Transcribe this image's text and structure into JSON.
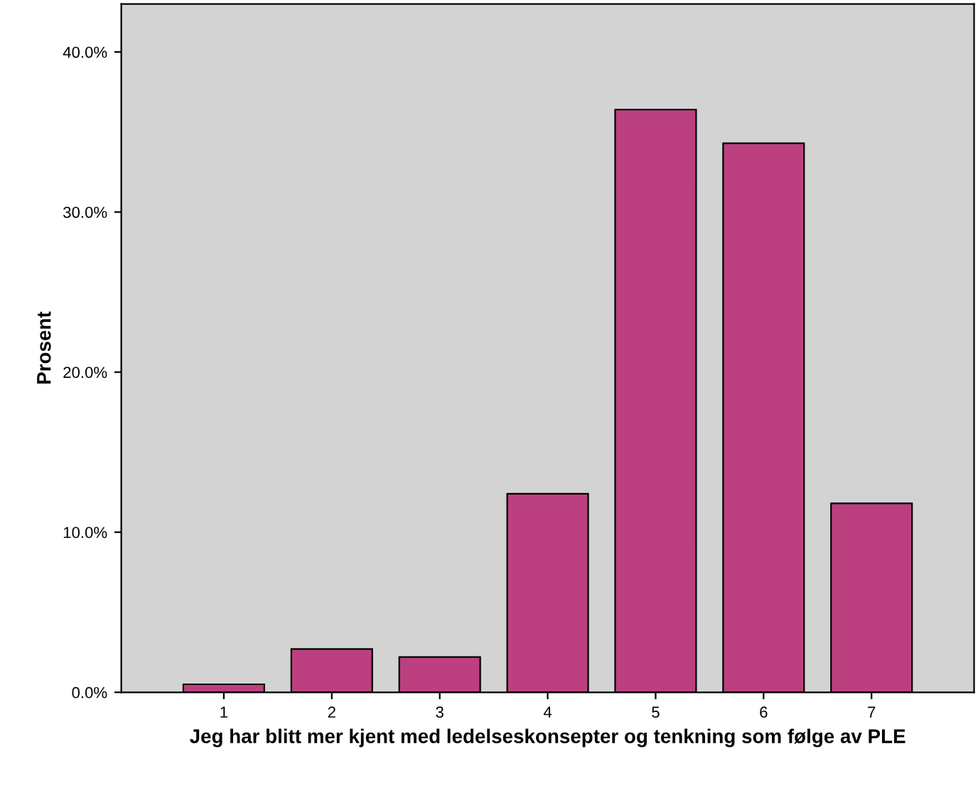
{
  "chart_data": {
    "type": "bar",
    "xlabel": "Jeg har blitt mer kjent med ledelseskonsepter og tenkning som følge av PLE",
    "ylabel": "Prosent",
    "categories": [
      "1",
      "2",
      "3",
      "4",
      "5",
      "6",
      "7"
    ],
    "values": [
      0.5,
      2.7,
      2.2,
      12.4,
      36.4,
      34.3,
      11.8
    ],
    "color": "#bc4080",
    "ylim": [
      0,
      43
    ],
    "yticks": [
      {
        "value": 0,
        "label": "0.0%"
      },
      {
        "value": 10,
        "label": "10.0%"
      },
      {
        "value": 20,
        "label": "20.0%"
      },
      {
        "value": 30,
        "label": "30.0%"
      },
      {
        "value": 40,
        "label": "40.0%"
      }
    ],
    "grid": false
  }
}
